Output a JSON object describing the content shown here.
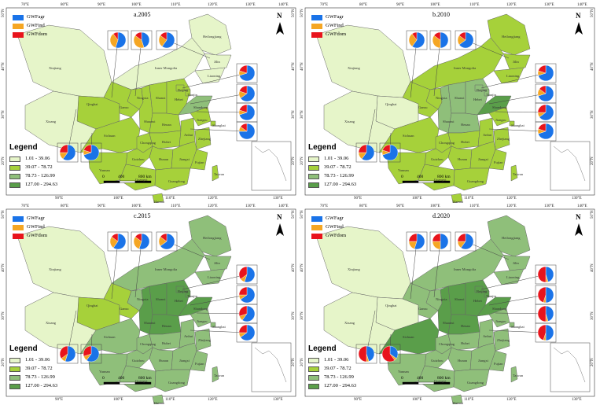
{
  "colors": {
    "GWFagr": "#1a73e8",
    "GWFind": "#f5a623",
    "GWFdom": "#e8141c",
    "class1": "#e6f5c9",
    "class2": "#a6d13a",
    "class3": "#8fbf7a",
    "class4": "#5a9e4a"
  },
  "key_labels": [
    "GWFagr",
    "GWFind",
    "GWFdom"
  ],
  "legend": {
    "title": "Legend",
    "classes": [
      "1.01 - 39.06",
      "39.07 - 78.72",
      "78.73 - 126.99",
      "127.00 - 294.63"
    ]
  },
  "scale": {
    "zero": "0",
    "mid": "400",
    "end": "800 km"
  },
  "north": "N",
  "lon_ticks": [
    "70°E",
    "80°E",
    "90°E",
    "100°E",
    "110°E",
    "120°E",
    "130°E",
    "140°E"
  ],
  "lon_ticks_bottom": [
    "90°E",
    "100°E",
    "110°E",
    "120°E",
    "130°E"
  ],
  "lat_ticks": [
    "50°N",
    "40°N",
    "30°N",
    "20°N"
  ],
  "provinces": [
    "Heilongjiang",
    "Jilin",
    "Liaoning",
    "Inner Mongolia",
    "Xinjiang",
    "Qinghai",
    "Gansu",
    "Ningxia",
    "Shaanxi",
    "Shanxi",
    "Henan",
    "Hebei",
    "Beijing",
    "Tianjin",
    "Shandong",
    "Xizang",
    "Sichuan",
    "Chongqing",
    "Hubei",
    "Anhui",
    "Jiangsu",
    "Shanghai",
    "Zhejiang",
    "Hunan",
    "Jiangxi",
    "Guizhou",
    "Yunnan",
    "Guangxi",
    "Guangdong",
    "Fujian",
    "Taiwan",
    "Hainan"
  ],
  "panels": [
    {
      "title": "a.2005",
      "classes": [
        0,
        0,
        0,
        0,
        0,
        1,
        1,
        1,
        1,
        1,
        1,
        1,
        1,
        1,
        2,
        0,
        1,
        1,
        1,
        1,
        1,
        1,
        1,
        1,
        1,
        1,
        1,
        1,
        1,
        1,
        1,
        1
      ]
    },
    {
      "title": "b.2010",
      "classes": [
        1,
        1,
        1,
        1,
        0,
        0,
        1,
        1,
        2,
        2,
        2,
        2,
        2,
        2,
        3,
        0,
        1,
        1,
        1,
        1,
        1,
        1,
        1,
        1,
        1,
        1,
        1,
        1,
        1,
        1,
        1,
        1
      ]
    },
    {
      "title": "c.2015",
      "classes": [
        2,
        2,
        2,
        2,
        0,
        1,
        1,
        2,
        3,
        3,
        3,
        3,
        3,
        3,
        3,
        0,
        2,
        2,
        2,
        2,
        2,
        2,
        2,
        2,
        2,
        2,
        2,
        2,
        2,
        2,
        2,
        2
      ]
    },
    {
      "title": "d.2020",
      "classes": [
        2,
        2,
        2,
        2,
        0,
        0,
        2,
        2,
        3,
        3,
        3,
        3,
        3,
        3,
        3,
        0,
        3,
        2,
        2,
        2,
        2,
        2,
        2,
        2,
        2,
        2,
        2,
        2,
        2,
        2,
        2,
        2
      ]
    }
  ],
  "pies": [
    [
      [
        0.55,
        0.35,
        0.1
      ],
      [
        0.45,
        0.4,
        0.15
      ],
      [
        0.6,
        0.25,
        0.15
      ],
      [
        0.7,
        0.1,
        0.2
      ],
      [
        0.65,
        0.15,
        0.2
      ],
      [
        0.7,
        0.1,
        0.2
      ],
      [
        0.75,
        0.1,
        0.15
      ],
      [
        0.6,
        0.15,
        0.25
      ],
      [
        0.7,
        0.1,
        0.2
      ]
    ],
    [
      [
        0.6,
        0.3,
        0.1
      ],
      [
        0.5,
        0.35,
        0.15
      ],
      [
        0.65,
        0.2,
        0.15
      ],
      [
        0.7,
        0.1,
        0.2
      ],
      [
        0.7,
        0.15,
        0.15
      ],
      [
        0.65,
        0.1,
        0.25
      ],
      [
        0.7,
        0.1,
        0.2
      ],
      [
        0.6,
        0.15,
        0.25
      ],
      [
        0.7,
        0.1,
        0.2
      ]
    ],
    [
      [
        0.6,
        0.25,
        0.15
      ],
      [
        0.55,
        0.3,
        0.15
      ],
      [
        0.65,
        0.2,
        0.15
      ],
      [
        0.55,
        0.1,
        0.35
      ],
      [
        0.65,
        0.1,
        0.25
      ],
      [
        0.6,
        0.1,
        0.3
      ],
      [
        0.65,
        0.1,
        0.25
      ],
      [
        0.55,
        0.1,
        0.35
      ],
      [
        0.6,
        0.1,
        0.3
      ]
    ],
    [
      [
        0.55,
        0.2,
        0.25
      ],
      [
        0.5,
        0.25,
        0.25
      ],
      [
        0.6,
        0.15,
        0.25
      ],
      [
        0.45,
        0.05,
        0.5
      ],
      [
        0.5,
        0.05,
        0.45
      ],
      [
        0.45,
        0.05,
        0.5
      ],
      [
        0.5,
        0.05,
        0.45
      ],
      [
        0.45,
        0.05,
        0.5
      ],
      [
        0.35,
        0.05,
        0.6
      ]
    ]
  ]
}
